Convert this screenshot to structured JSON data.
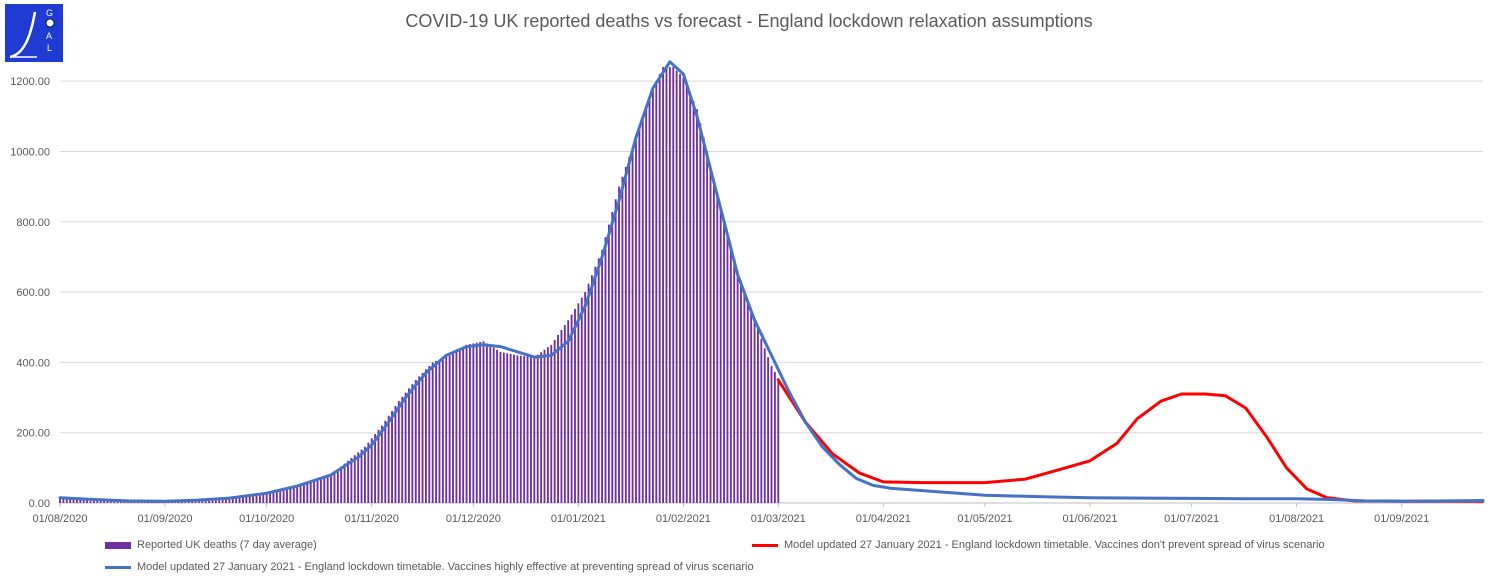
{
  "logo": {
    "letters": [
      "G",
      "O",
      "A",
      "L"
    ],
    "color": "#1f3bd1"
  },
  "chart_data": {
    "type": "bar+line",
    "title": "COVID-19 UK reported deaths vs forecast - England lockdown relaxation assumptions",
    "xlabel": "",
    "ylabel": "",
    "ylim": [
      0,
      1300
    ],
    "yticks": [
      0,
      200,
      400,
      600,
      800,
      1000,
      1200
    ],
    "ytick_labels": [
      "0.00",
      "200.00",
      "400.00",
      "600.00",
      "800.00",
      "1000.00",
      "1200.00"
    ],
    "xlim_days": [
      0,
      420
    ],
    "xticks": [
      {
        "label": "01/08/2020",
        "day": 0
      },
      {
        "label": "01/09/2020",
        "day": 31
      },
      {
        "label": "01/10/2020",
        "day": 61
      },
      {
        "label": "01/11/2020",
        "day": 92
      },
      {
        "label": "01/12/2020",
        "day": 122
      },
      {
        "label": "01/01/2021",
        "day": 153
      },
      {
        "label": "01/02/2021",
        "day": 184
      },
      {
        "label": "01/03/2021",
        "day": 212
      },
      {
        "label": "01/04/2021",
        "day": 243
      },
      {
        "label": "01/05/2021",
        "day": 273
      },
      {
        "label": "01/06/2021",
        "day": 304
      },
      {
        "label": "01/07/2021",
        "day": 334
      },
      {
        "label": "01/08/2021",
        "day": 365
      },
      {
        "label": "01/09/2021",
        "day": 396
      }
    ],
    "grid": true,
    "legend_position": "bottom",
    "series": [
      {
        "name": "Reported UK deaths (7 day average)",
        "kind": "bar",
        "color": "#7030a0",
        "bar_every_days": 1,
        "points": [
          [
            0,
            15
          ],
          [
            10,
            10
          ],
          [
            20,
            6
          ],
          [
            31,
            5
          ],
          [
            40,
            8
          ],
          [
            50,
            14
          ],
          [
            61,
            30
          ],
          [
            70,
            50
          ],
          [
            80,
            80
          ],
          [
            90,
            160
          ],
          [
            95,
            220
          ],
          [
            100,
            290
          ],
          [
            105,
            350
          ],
          [
            110,
            400
          ],
          [
            115,
            420
          ],
          [
            120,
            450
          ],
          [
            125,
            460
          ],
          [
            130,
            430
          ],
          [
            135,
            420
          ],
          [
            140,
            415
          ],
          [
            145,
            450
          ],
          [
            150,
            520
          ],
          [
            155,
            600
          ],
          [
            160,
            720
          ],
          [
            165,
            900
          ],
          [
            170,
            1040
          ],
          [
            175,
            1180
          ],
          [
            178,
            1240
          ],
          [
            181,
            1240
          ],
          [
            184,
            1210
          ],
          [
            188,
            1120
          ],
          [
            192,
            960
          ],
          [
            196,
            800
          ],
          [
            200,
            660
          ],
          [
            204,
            550
          ],
          [
            208,
            440
          ],
          [
            210,
            390
          ],
          [
            212,
            355
          ]
        ]
      },
      {
        "name": "Model updated 27 January 2021 - England lockdown timetable. Vaccines don't prevent spread of virus scenario",
        "kind": "line",
        "color": "#ff0000",
        "points": [
          [
            212,
            350
          ],
          [
            220,
            230
          ],
          [
            228,
            140
          ],
          [
            236,
            85
          ],
          [
            243,
            60
          ],
          [
            255,
            58
          ],
          [
            273,
            58
          ],
          [
            285,
            68
          ],
          [
            295,
            95
          ],
          [
            304,
            120
          ],
          [
            312,
            170
          ],
          [
            318,
            240
          ],
          [
            325,
            290
          ],
          [
            331,
            310
          ],
          [
            338,
            310
          ],
          [
            344,
            305
          ],
          [
            350,
            270
          ],
          [
            356,
            190
          ],
          [
            362,
            100
          ],
          [
            368,
            40
          ],
          [
            374,
            15
          ],
          [
            382,
            6
          ],
          [
            396,
            5
          ],
          [
            410,
            5
          ],
          [
            420,
            5
          ]
        ]
      },
      {
        "name": "Model updated 27 January 2021 - England lockdown timetable. Vaccines highly effective at preventing spread of virus scenario",
        "kind": "line",
        "color": "#4472c4",
        "points": [
          [
            0,
            15
          ],
          [
            10,
            10
          ],
          [
            20,
            6
          ],
          [
            31,
            5
          ],
          [
            40,
            8
          ],
          [
            50,
            14
          ],
          [
            61,
            28
          ],
          [
            70,
            48
          ],
          [
            80,
            80
          ],
          [
            88,
            130
          ],
          [
            92,
            165
          ],
          [
            97,
            230
          ],
          [
            102,
            300
          ],
          [
            108,
            370
          ],
          [
            114,
            420
          ],
          [
            120,
            445
          ],
          [
            125,
            450
          ],
          [
            130,
            445
          ],
          [
            135,
            430
          ],
          [
            140,
            415
          ],
          [
            145,
            420
          ],
          [
            150,
            460
          ],
          [
            155,
            560
          ],
          [
            160,
            700
          ],
          [
            165,
            860
          ],
          [
            170,
            1040
          ],
          [
            175,
            1180
          ],
          [
            180,
            1255
          ],
          [
            184,
            1220
          ],
          [
            188,
            1100
          ],
          [
            192,
            950
          ],
          [
            196,
            800
          ],
          [
            200,
            650
          ],
          [
            205,
            520
          ],
          [
            210,
            420
          ],
          [
            215,
            320
          ],
          [
            220,
            230
          ],
          [
            225,
            160
          ],
          [
            230,
            110
          ],
          [
            235,
            70
          ],
          [
            240,
            50
          ],
          [
            245,
            42
          ],
          [
            255,
            35
          ],
          [
            265,
            28
          ],
          [
            273,
            22
          ],
          [
            290,
            18
          ],
          [
            304,
            15
          ],
          [
            320,
            14
          ],
          [
            334,
            13
          ],
          [
            350,
            12
          ],
          [
            365,
            12
          ],
          [
            375,
            10
          ],
          [
            385,
            6
          ],
          [
            396,
            5
          ],
          [
            410,
            6
          ],
          [
            420,
            7
          ]
        ]
      }
    ]
  }
}
